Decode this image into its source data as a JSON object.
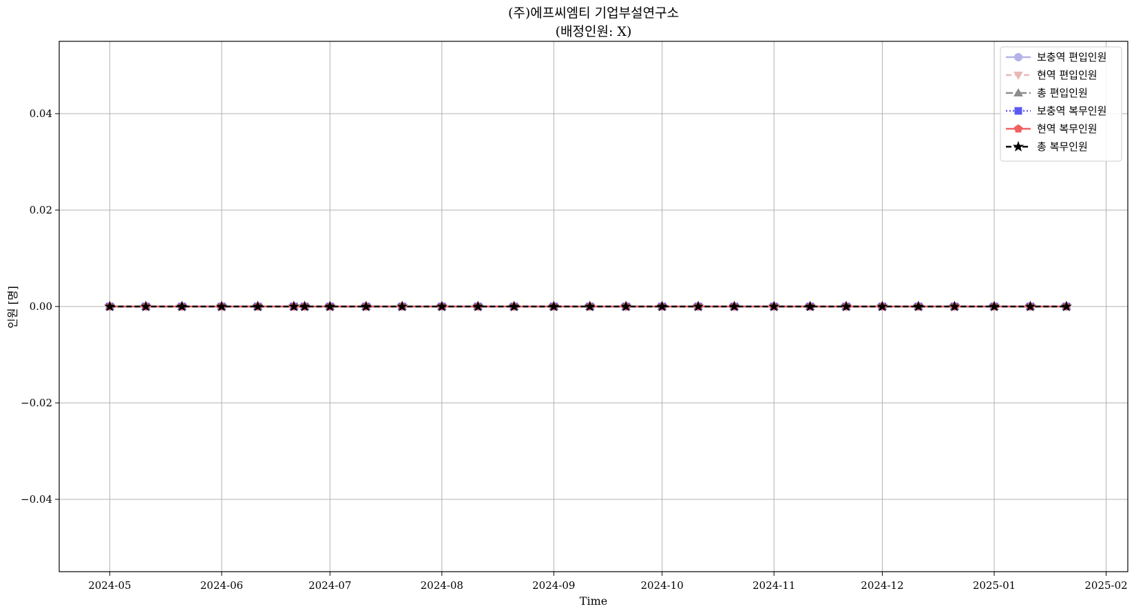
{
  "chart_data": {
    "type": "line",
    "title_lines": [
      "(주)에프씨엠티 기업부설연구소",
      "(배정인원: X)"
    ],
    "xlabel": "Time",
    "ylabel": "인원 [명]",
    "xlim": [
      "2024-04-17",
      "2025-02-07"
    ],
    "ylim": [
      -0.055,
      0.055
    ],
    "x_ticks": [
      "2024-05-01",
      "2024-06-01",
      "2024-07-01",
      "2024-08-01",
      "2024-09-01",
      "2024-10-01",
      "2024-11-01",
      "2024-12-01",
      "2025-01-01",
      "2025-02-01"
    ],
    "x_tick_labels": [
      "2024-05",
      "2024-06",
      "2024-07",
      "2024-08",
      "2024-09",
      "2024-10",
      "2024-11",
      "2024-12",
      "2025-01",
      "2025-02"
    ],
    "y_ticks": [
      -0.04,
      -0.02,
      0.0,
      0.02,
      0.04
    ],
    "y_tick_labels": [
      "−0.04",
      "−0.02",
      "0.00",
      "0.02",
      "0.04"
    ],
    "grid": true,
    "legend_position": "top-right",
    "x": [
      "2024-05-01",
      "2024-05-11",
      "2024-05-21",
      "2024-06-01",
      "2024-06-11",
      "2024-06-21",
      "2024-06-24",
      "2024-07-01",
      "2024-07-11",
      "2024-07-21",
      "2024-08-01",
      "2024-08-11",
      "2024-08-21",
      "2024-09-01",
      "2024-09-11",
      "2024-09-21",
      "2024-10-01",
      "2024-10-11",
      "2024-10-21",
      "2024-11-01",
      "2024-11-11",
      "2024-11-21",
      "2024-12-01",
      "2024-12-11",
      "2024-12-21",
      "2025-01-01",
      "2025-01-11",
      "2025-01-21"
    ],
    "series": [
      {
        "name": "보충역 편입인원",
        "color": "#b3b3e6",
        "dash": "",
        "marker": "circle",
        "values": [
          0,
          0,
          0,
          0,
          0,
          0,
          0,
          0,
          0,
          0,
          0,
          0,
          0,
          0,
          0,
          0,
          0,
          0,
          0,
          0,
          0,
          0,
          0,
          0,
          0,
          0,
          0,
          0
        ]
      },
      {
        "name": "현역 편입인원",
        "color": "#e8b8b8",
        "dash": "8,5",
        "marker": "triangle-down",
        "values": [
          0,
          0,
          0,
          0,
          0,
          0,
          0,
          0,
          0,
          0,
          0,
          0,
          0,
          0,
          0,
          0,
          0,
          0,
          0,
          0,
          0,
          0,
          0,
          0,
          0,
          0,
          0,
          0
        ]
      },
      {
        "name": "총 편입인원",
        "color": "#8c8c8c",
        "dash": "10,4,2,4",
        "marker": "triangle-up",
        "values": [
          0,
          0,
          0,
          0,
          0,
          0,
          0,
          0,
          0,
          0,
          0,
          0,
          0,
          0,
          0,
          0,
          0,
          0,
          0,
          0,
          0,
          0,
          0,
          0,
          0,
          0,
          0,
          0
        ]
      },
      {
        "name": "보충역 복무인원",
        "color": "#5a5af0",
        "dash": "2,3",
        "marker": "square",
        "values": [
          0,
          0,
          0,
          0,
          0,
          0,
          0,
          0,
          0,
          0,
          0,
          0,
          0,
          0,
          0,
          0,
          0,
          0,
          0,
          0,
          0,
          0,
          0,
          0,
          0,
          0,
          0,
          0
        ]
      },
      {
        "name": "현역 복무인원",
        "color": "#f06060",
        "dash": "",
        "marker": "pentagon",
        "values": [
          0,
          0,
          0,
          0,
          0,
          0,
          0,
          0,
          0,
          0,
          0,
          0,
          0,
          0,
          0,
          0,
          0,
          0,
          0,
          0,
          0,
          0,
          0,
          0,
          0,
          0,
          0,
          0
        ]
      },
      {
        "name": "총 복무인원",
        "color": "#000000",
        "dash": "8,4",
        "marker": "star",
        "values": [
          0,
          0,
          0,
          0,
          0,
          0,
          0,
          0,
          0,
          0,
          0,
          0,
          0,
          0,
          0,
          0,
          0,
          0,
          0,
          0,
          0,
          0,
          0,
          0,
          0,
          0,
          0,
          0
        ]
      }
    ]
  }
}
